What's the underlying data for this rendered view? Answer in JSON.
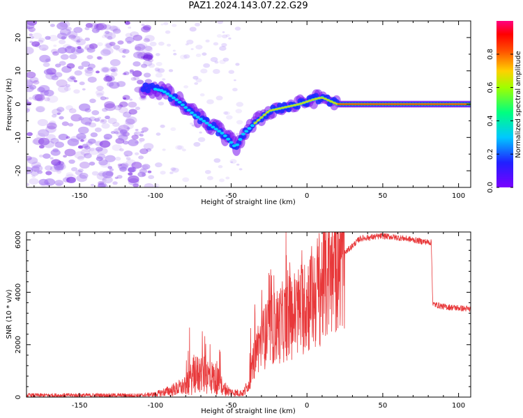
{
  "title": "PAZ1.2024.143.07.22.G29",
  "chart_data": [
    {
      "type": "heatmap",
      "xlabel": "Height of straight line (km)",
      "ylabel": "Frequency (Hz)",
      "xlim": [
        -185,
        108
      ],
      "ylim": [
        -25,
        25
      ],
      "xticks": [
        -150,
        -100,
        -50,
        0,
        50,
        100
      ],
      "yticks": [
        -20,
        -10,
        0,
        10,
        20
      ],
      "colorbar": {
        "label": "Normalized spectral amplitude",
        "range": [
          0.0,
          1.0
        ],
        "ticks": [
          0.0,
          0.2,
          0.4,
          0.6,
          0.8
        ],
        "colormap": "rainbow (purple-blue-cyan-green-yellow-red-magenta)"
      },
      "ridge": {
        "x": [
          -105,
          -95,
          -85,
          -75,
          -65,
          -55,
          -47,
          -42,
          -35,
          -25,
          -15,
          -5,
          5,
          10,
          20,
          50,
          80,
          108
        ],
        "y": [
          5,
          4,
          1,
          -3,
          -6,
          -9,
          -13,
          -9,
          -6,
          -2,
          -1,
          0,
          1.5,
          2,
          0,
          0,
          0,
          0
        ]
      },
      "grid": false
    },
    {
      "type": "line",
      "xlabel": "Height of straight line (km)",
      "ylabel": "SNR (10 * v/v)",
      "xlim": [
        -185,
        108
      ],
      "ylim": [
        0,
        6300
      ],
      "xticks": [
        -150,
        -100,
        -50,
        0,
        50,
        100
      ],
      "yticks": [
        0,
        2000,
        4000,
        6000
      ],
      "color": "#e8383a",
      "envelope": {
        "x": [
          -185,
          -110,
          -100,
          -90,
          -80,
          -75,
          -70,
          -60,
          -55,
          -50,
          -42,
          -38,
          -35,
          -32,
          -25,
          -15,
          -5,
          5,
          15,
          25,
          35,
          50,
          65,
          75,
          82,
          83,
          90,
          100,
          108
        ],
        "y": [
          70,
          70,
          110,
          250,
          420,
          800,
          900,
          700,
          350,
          180,
          150,
          500,
          1400,
          2000,
          2500,
          2900,
          3300,
          3900,
          4700,
          5500,
          6050,
          6150,
          6050,
          5950,
          5900,
          3550,
          3450,
          3400,
          3350
        ]
      },
      "grid": false
    }
  ]
}
